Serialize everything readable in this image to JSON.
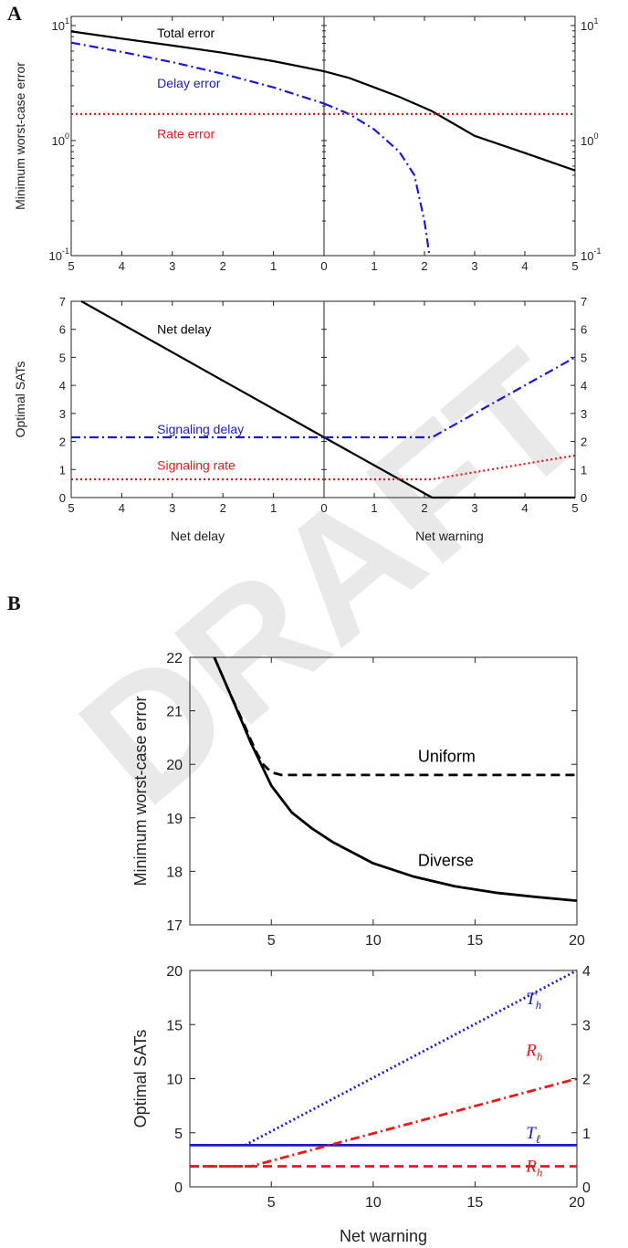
{
  "panels": {
    "a_letter": "A",
    "b_letter": "B"
  },
  "watermark": "DRAFT",
  "chart_data": [
    {
      "id": "A-top",
      "type": "line",
      "yscale": "log",
      "ylim": [
        0.1,
        12
      ],
      "ylabel": "Minimum worst-case error",
      "y_ticks": [
        0.1,
        1,
        10
      ],
      "y_tick_labels": [
        "10",
        "10",
        "10"
      ],
      "y_tick_exponents": [
        "-1",
        "0",
        "1"
      ],
      "left_panel": {
        "xlabel": "",
        "xlim": [
          5,
          0
        ],
        "x_ticks": [
          5,
          4,
          3,
          2,
          1,
          0
        ]
      },
      "right_panel": {
        "xlabel": "",
        "xlim": [
          0,
          5
        ],
        "x_ticks": [
          0,
          1,
          2,
          3,
          4,
          5
        ]
      },
      "series": [
        {
          "name": "Total error",
          "color": "#000000",
          "style": "solid",
          "left": {
            "x": [
              5,
              4,
              3,
              2,
              1,
              0
            ],
            "y": [
              8.9,
              7.7,
              6.7,
              5.8,
              4.9,
              4.0
            ]
          },
          "right": {
            "x": [
              0,
              0.5,
              1,
              1.5,
              2.15,
              3,
              4,
              5
            ],
            "y": [
              4.0,
              3.5,
              2.9,
              2.4,
              1.8,
              1.1,
              0.78,
              0.55
            ]
          }
        },
        {
          "name": "Delay error",
          "color": "#1a1acc",
          "style": "dashdot",
          "left": {
            "x": [
              5,
              4,
              3,
              2,
              1,
              0
            ],
            "y": [
              7.1,
              5.9,
              4.8,
              3.8,
              2.9,
              2.1
            ]
          },
          "right": {
            "x": [
              0,
              0.5,
              1,
              1.5,
              1.8,
              2.0,
              2.1
            ],
            "y": [
              2.1,
              1.7,
              1.25,
              0.8,
              0.5,
              0.2,
              0.1
            ]
          }
        },
        {
          "name": "Rate error",
          "color": "#e8181a",
          "style": "dotted",
          "left": {
            "x": [
              5,
              0
            ],
            "y": [
              1.7,
              1.7
            ]
          },
          "right": {
            "x": [
              0,
              5
            ],
            "y": [
              1.7,
              1.7
            ]
          }
        }
      ],
      "annotations": [
        {
          "text": "Total error",
          "color": "#000000",
          "x": 3.3,
          "y": 8.6
        },
        {
          "text": "Delay error",
          "color": "#1a1acc",
          "x": 3.3,
          "y": 3.15
        },
        {
          "text": "Rate error",
          "color": "#e8181a",
          "x": 3.3,
          "y": 1.15
        }
      ]
    },
    {
      "id": "A-bottom",
      "type": "line",
      "ylim": [
        0,
        7
      ],
      "ylabel": "Optimal SATs",
      "y_ticks": [
        0,
        1,
        2,
        3,
        4,
        5,
        6,
        7
      ],
      "left_panel": {
        "xlabel": "Net delay",
        "xlim": [
          5,
          0
        ],
        "x_ticks": [
          5,
          4,
          3,
          2,
          1,
          0
        ]
      },
      "right_panel": {
        "xlabel": "Net warning",
        "xlim": [
          0,
          5
        ],
        "x_ticks": [
          0,
          1,
          2,
          3,
          4,
          5
        ]
      },
      "series": [
        {
          "name": "Net delay",
          "color": "#000000",
          "style": "solid",
          "left": {
            "x": [
              4.8,
              0
            ],
            "y": [
              7.0,
              2.15
            ]
          },
          "right": {
            "x": [
              0,
              2.15,
              5
            ],
            "y": [
              2.15,
              0,
              0
            ]
          }
        },
        {
          "name": "Signaling delay",
          "color": "#1a1acc",
          "style": "dashdot",
          "left": {
            "x": [
              5,
              0
            ],
            "y": [
              2.15,
              2.15
            ]
          },
          "right": {
            "x": [
              0,
              2.15,
              5
            ],
            "y": [
              2.15,
              2.15,
              5.0
            ]
          }
        },
        {
          "name": "Signaling rate",
          "color": "#e8181a",
          "style": "dotted",
          "left": {
            "x": [
              5,
              0
            ],
            "y": [
              0.65,
              0.65
            ]
          },
          "right": {
            "x": [
              0,
              2.15,
              5
            ],
            "y": [
              0.65,
              0.65,
              1.5
            ]
          }
        }
      ],
      "annotations": [
        {
          "text": "Net delay",
          "color": "#000000",
          "x": 3.3,
          "y": 6.0
        },
        {
          "text": "Signaling delay",
          "color": "#1a1acc",
          "x": 3.3,
          "y": 2.45
        },
        {
          "text": "Signaling rate",
          "color": "#e8181a",
          "x": 3.3,
          "y": 1.15
        }
      ]
    },
    {
      "id": "B-top",
      "type": "line",
      "xlim": [
        1,
        20
      ],
      "ylim": [
        17,
        22
      ],
      "xlabel": "",
      "ylabel": "Minimum worst-case error",
      "x_ticks": [
        5,
        10,
        15,
        20
      ],
      "y_ticks": [
        17,
        18,
        19,
        20,
        21,
        22
      ],
      "series": [
        {
          "name": "Uniform",
          "color": "#000000",
          "style": "dashed",
          "x": [
            2.2,
            3,
            3.6,
            4,
            4.3,
            4.6,
            5,
            5.5,
            20
          ],
          "y": [
            22.0,
            21.3,
            20.8,
            20.45,
            20.2,
            20.0,
            19.85,
            19.8,
            19.8
          ]
        },
        {
          "name": "Diverse",
          "color": "#000000",
          "style": "solid",
          "x": [
            2.2,
            3,
            4,
            5,
            6,
            7,
            8,
            10,
            12,
            14,
            16,
            18,
            20
          ],
          "y": [
            22.0,
            21.3,
            20.4,
            19.6,
            19.1,
            18.8,
            18.55,
            18.15,
            17.9,
            17.72,
            17.6,
            17.52,
            17.45
          ]
        }
      ],
      "annotations": [
        {
          "text": "Uniform",
          "color": "#000000",
          "x": 12.2,
          "y": 20.15
        },
        {
          "text": "Diverse",
          "color": "#000000",
          "x": 12.2,
          "y": 18.2
        }
      ]
    },
    {
      "id": "B-bottom",
      "type": "line",
      "xlim": [
        1,
        20
      ],
      "ylim": [
        0,
        20
      ],
      "y2lim": [
        0,
        4
      ],
      "xlabel": "Net warning",
      "ylabel": "Optimal SATs",
      "x_ticks": [
        5,
        10,
        15,
        20
      ],
      "y_ticks": [
        0,
        5,
        10,
        15,
        20
      ],
      "y2_ticks": [
        0,
        1,
        2,
        3,
        4
      ],
      "series": [
        {
          "name": "T_h",
          "color": "#1a1acc",
          "style": "dotted",
          "axis": "left",
          "x": [
            3.7,
            20
          ],
          "y": [
            3.85,
            20.0
          ]
        },
        {
          "name": "T_l",
          "color": "#1a1acc",
          "style": "solid",
          "axis": "left",
          "x": [
            1,
            20
          ],
          "y": [
            3.85,
            3.85
          ]
        },
        {
          "name": "R_h (diverse)",
          "color": "#e8181a",
          "style": "dashdot",
          "axis": "right",
          "x": [
            1,
            4,
            20
          ],
          "y": [
            0.38,
            0.38,
            2.0
          ]
        },
        {
          "name": "R_h (uniform)",
          "color": "#e8181a",
          "style": "dashed",
          "axis": "right",
          "x": [
            1,
            20
          ],
          "y": [
            0.38,
            0.38
          ]
        }
      ],
      "annotations": [
        {
          "text": "T",
          "sub": "h",
          "color": "#1a1acc",
          "x": 17.5,
          "y": 17.4
        },
        {
          "text": "R",
          "sub": "h",
          "color": "#e8181a",
          "x": 17.5,
          "y": 12.6
        },
        {
          "text": "T",
          "sub": "ℓ",
          "color": "#1a1acc",
          "x": 17.5,
          "y": 5.0
        },
        {
          "text": "R",
          "sub": "h",
          "color": "#e8181a",
          "x": 17.5,
          "y": 1.9
        }
      ]
    }
  ]
}
